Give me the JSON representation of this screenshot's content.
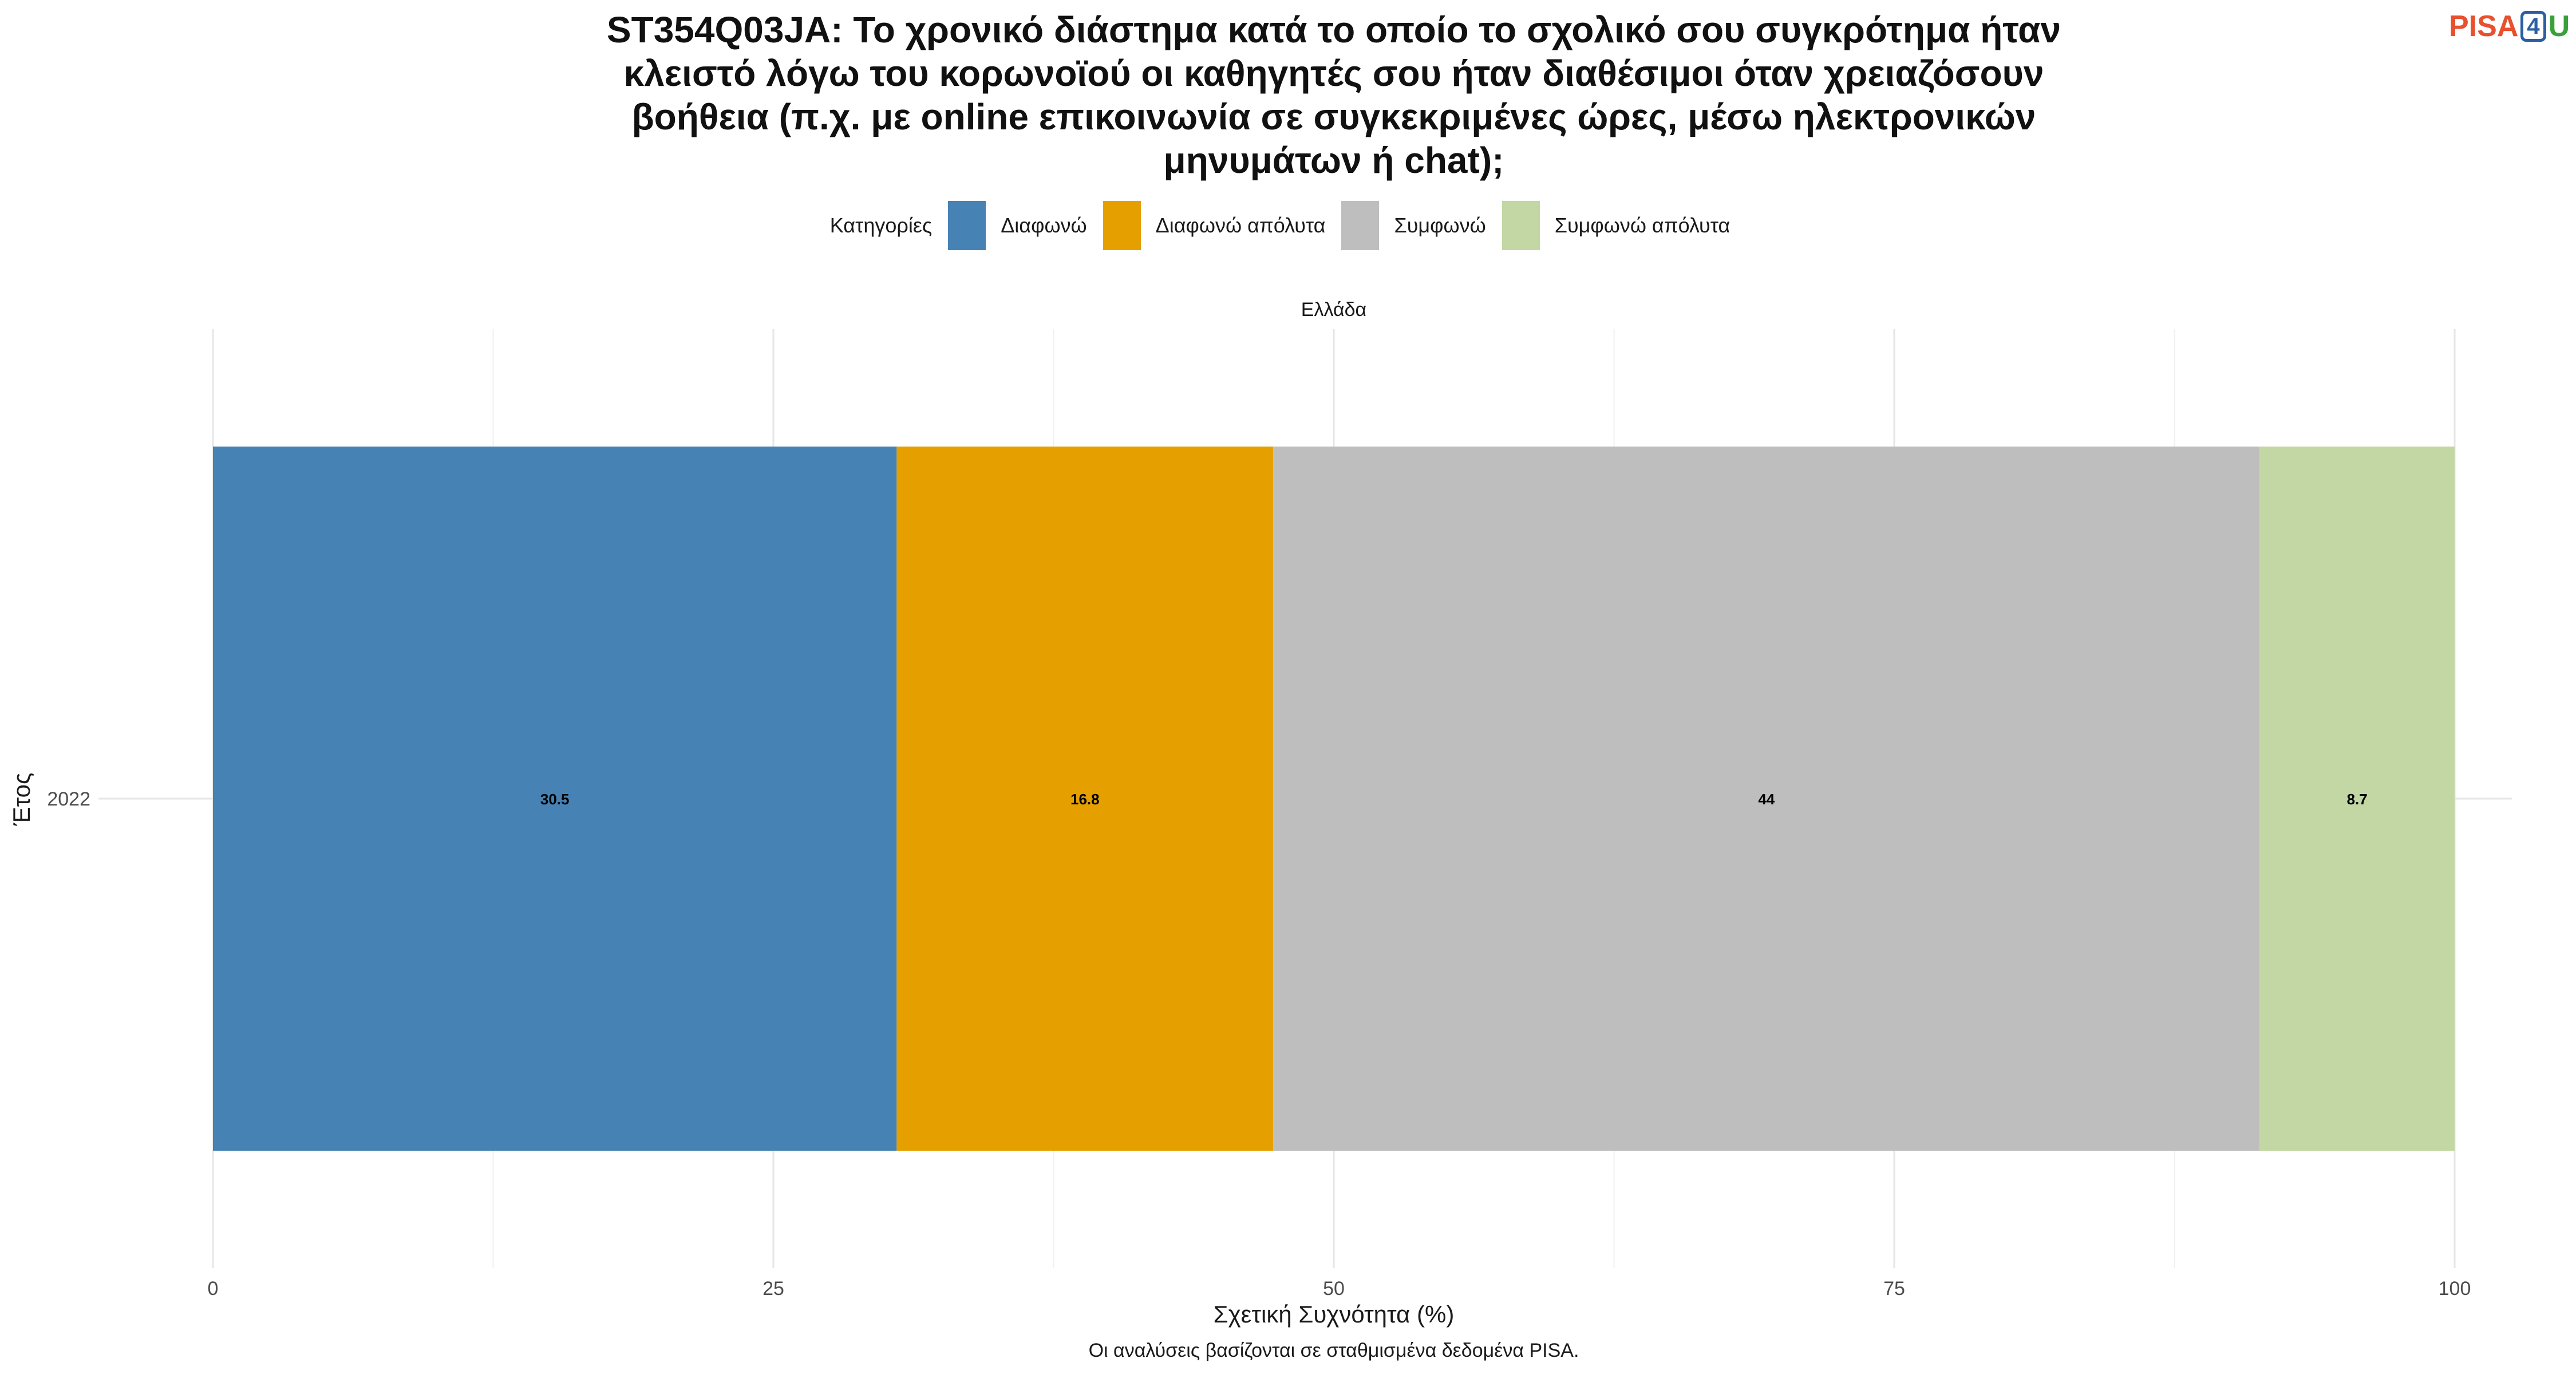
{
  "title_lines": [
    "ST354Q03JA: Το χρονικό διάστημα κατά το οποίο το σχολικό σου συγκρότημα ήταν",
    "κλειστό λόγω του κορωνοϊού οι καθηγητές σου ήταν διαθέσιμοι όταν χρειαζόσουν",
    "βοήθεια (π.χ. με online επικοινωνία σε συγκεκριμένες ώρες, μέσω ηλεκτρονικών",
    "μηνυμάτων ή chat);"
  ],
  "logo": {
    "pisa": "PISA",
    "four": "4",
    "u": "U"
  },
  "legend": {
    "title": "Κατηγορίες",
    "items": [
      {
        "label": "Διαφωνώ",
        "color": "#4682b4"
      },
      {
        "label": "Διαφωνώ απόλυτα",
        "color": "#e5a000"
      },
      {
        "label": "Συμφωνώ",
        "color": "#bebebe"
      },
      {
        "label": "Συμφωνώ απόλυτα",
        "color": "#c2d7a4"
      }
    ]
  },
  "caption": "Οι αναλύσεις βασίζονται σε σταθμισμένα δεδομένα PISA.",
  "chart_data": {
    "type": "bar",
    "orientation": "horizontal",
    "stacked": true,
    "facet": "Ελλάδα",
    "categories": [
      "2022"
    ],
    "series": [
      {
        "name": "Διαφωνώ",
        "values": [
          30.5
        ],
        "color": "#4682b4"
      },
      {
        "name": "Διαφωνώ απόλυτα",
        "values": [
          16.8
        ],
        "color": "#e5a000"
      },
      {
        "name": "Συμφωνώ",
        "values": [
          44
        ],
        "color": "#bebebe"
      },
      {
        "name": "Συμφωνώ απόλυτα",
        "values": [
          8.7
        ],
        "color": "#c2d7a4"
      }
    ],
    "data_labels": [
      "30.5",
      "16.8",
      "44",
      "8.7"
    ],
    "xlabel": "Σχετική Συχνότητα (%)",
    "ylabel": "Έτος",
    "xlim": [
      0,
      100
    ],
    "xticks": [
      0,
      25,
      50,
      75,
      100
    ],
    "xtick_labels": [
      "0",
      "25",
      "50",
      "75",
      "100"
    ],
    "grid": true,
    "legend_position": "top"
  }
}
